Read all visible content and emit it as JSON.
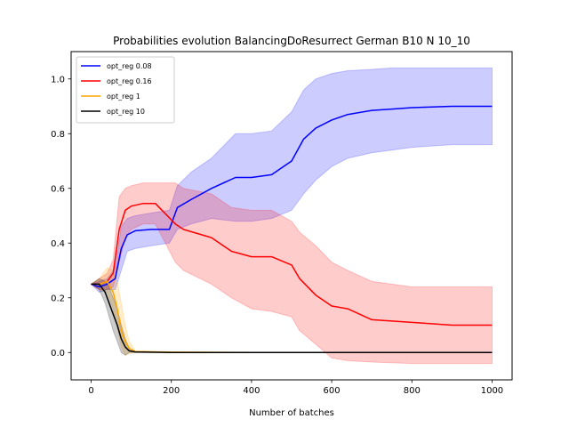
{
  "chart_data": {
    "type": "line",
    "title": "Probabilities evolution BalancingDoResurrect German B10 N 10_10",
    "xlabel": "Number of batches",
    "ylabel": "",
    "xlim": [
      -50,
      1050
    ],
    "ylim": [
      -0.1,
      1.1
    ],
    "xticks": [
      0,
      200,
      400,
      600,
      800,
      1000
    ],
    "yticks": [
      0.0,
      0.2,
      0.4,
      0.6,
      0.8,
      1.0
    ],
    "grid": false,
    "legend_position": "top-left",
    "series": [
      {
        "name": "opt_reg 0.08",
        "color": "#0000ff",
        "band_color": "#0000ff",
        "x": [
          0,
          20,
          40,
          60,
          75,
          90,
          110,
          150,
          195,
          215,
          250,
          300,
          360,
          400,
          450,
          500,
          530,
          560,
          600,
          640,
          700,
          750,
          800,
          900,
          1000
        ],
        "y": [
          0.25,
          0.24,
          0.25,
          0.27,
          0.38,
          0.43,
          0.445,
          0.45,
          0.45,
          0.53,
          0.56,
          0.6,
          0.64,
          0.64,
          0.65,
          0.7,
          0.78,
          0.82,
          0.85,
          0.87,
          0.885,
          0.89,
          0.895,
          0.9,
          0.9
        ],
        "lower": [
          0.25,
          0.22,
          0.23,
          0.23,
          0.3,
          0.37,
          0.38,
          0.39,
          0.4,
          0.45,
          0.47,
          0.49,
          0.48,
          0.48,
          0.49,
          0.52,
          0.58,
          0.63,
          0.68,
          0.71,
          0.73,
          0.74,
          0.75,
          0.76,
          0.76
        ],
        "upper": [
          0.25,
          0.26,
          0.27,
          0.31,
          0.46,
          0.49,
          0.5,
          0.51,
          0.52,
          0.61,
          0.66,
          0.71,
          0.8,
          0.8,
          0.81,
          0.88,
          0.96,
          1.0,
          1.02,
          1.03,
          1.035,
          1.04,
          1.04,
          1.04,
          1.04
        ]
      },
      {
        "name": "opt_reg 0.16",
        "color": "#ff0000",
        "band_color": "#ff0000",
        "x": [
          0,
          20,
          40,
          55,
          70,
          85,
          100,
          130,
          160,
          210,
          230,
          300,
          350,
          400,
          450,
          500,
          520,
          560,
          600,
          640,
          700,
          800,
          900,
          1000
        ],
        "y": [
          0.25,
          0.25,
          0.26,
          0.29,
          0.45,
          0.52,
          0.535,
          0.545,
          0.545,
          0.47,
          0.45,
          0.42,
          0.37,
          0.35,
          0.35,
          0.32,
          0.27,
          0.21,
          0.17,
          0.16,
          0.12,
          0.11,
          0.1,
          0.1
        ],
        "lower": [
          0.25,
          0.23,
          0.23,
          0.24,
          0.33,
          0.42,
          0.45,
          0.47,
          0.47,
          0.33,
          0.3,
          0.25,
          0.2,
          0.16,
          0.15,
          0.13,
          0.08,
          0.03,
          -0.02,
          -0.03,
          -0.035,
          -0.04,
          -0.04,
          -0.04
        ],
        "upper": [
          0.25,
          0.27,
          0.29,
          0.34,
          0.57,
          0.6,
          0.61,
          0.62,
          0.62,
          0.62,
          0.6,
          0.58,
          0.53,
          0.52,
          0.52,
          0.48,
          0.44,
          0.39,
          0.33,
          0.3,
          0.26,
          0.24,
          0.24,
          0.24
        ]
      },
      {
        "name": "opt_reg 1",
        "color": "#ffa500",
        "band_color": "#ffa500",
        "x": [
          0,
          20,
          40,
          55,
          65,
          75,
          85,
          95,
          110,
          200,
          400,
          1000
        ],
        "y": [
          0.25,
          0.25,
          0.26,
          0.22,
          0.16,
          0.08,
          0.04,
          0.015,
          0.003,
          0.001,
          0.0,
          0.0
        ],
        "lower": [
          0.25,
          0.23,
          0.22,
          0.16,
          0.09,
          0.02,
          -0.01,
          -0.005,
          0.0,
          0.0,
          0.0,
          0.0
        ],
        "upper": [
          0.25,
          0.27,
          0.31,
          0.3,
          0.26,
          0.18,
          0.1,
          0.04,
          0.006,
          0.002,
          0.0,
          0.0
        ]
      },
      {
        "name": "opt_reg 10",
        "color": "#000000",
        "band_color": "#000000",
        "x": [
          0,
          20,
          35,
          45,
          55,
          65,
          75,
          85,
          95,
          110,
          200,
          400,
          1000
        ],
        "y": [
          0.25,
          0.25,
          0.22,
          0.18,
          0.14,
          0.1,
          0.05,
          0.02,
          0.006,
          0.002,
          0.0,
          0.0,
          0.0
        ],
        "lower": [
          0.25,
          0.23,
          0.18,
          0.13,
          0.08,
          0.04,
          0.0,
          -0.01,
          0.0,
          0.0,
          0.0,
          0.0,
          0.0
        ],
        "upper": [
          0.25,
          0.27,
          0.26,
          0.24,
          0.2,
          0.16,
          0.1,
          0.05,
          0.015,
          0.004,
          0.0,
          0.0,
          0.0
        ]
      }
    ]
  }
}
